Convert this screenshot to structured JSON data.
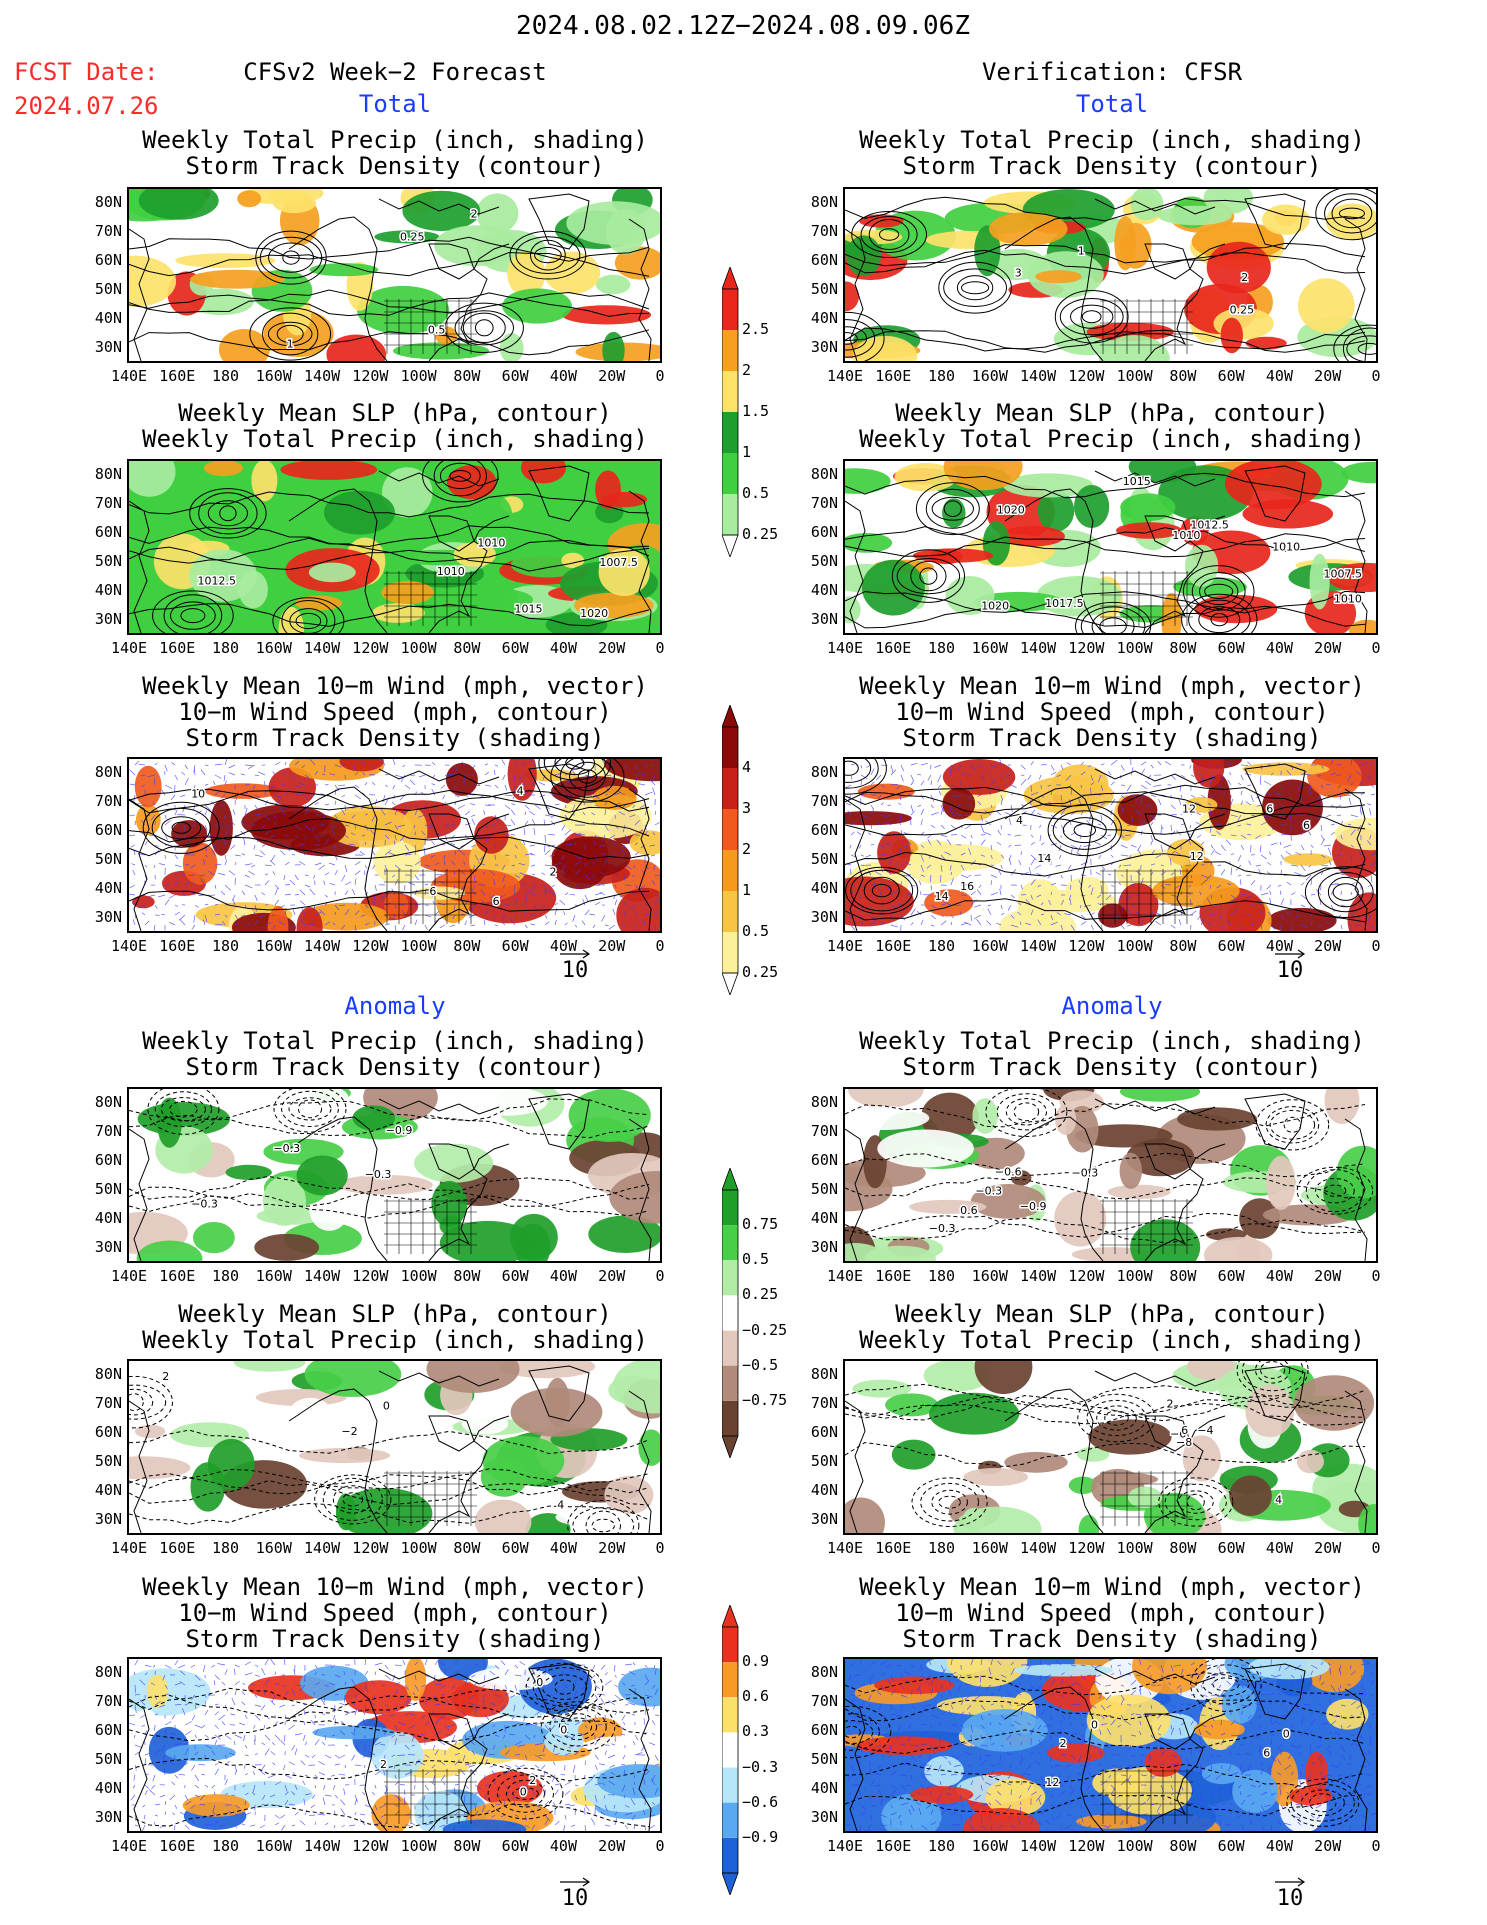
{
  "header": {
    "date_range": "2024.08.02.12Z−2024.08.09.06Z",
    "fcst_label": "FCST Date:",
    "fcst_date": "2024.07.26",
    "left_title": "CFSv2 Week−2 Forecast",
    "right_title": "Verification: CFSR",
    "section_total": "Total",
    "section_anomaly": "Anomaly"
  },
  "panel_titles": {
    "precip_storm": "Weekly Total Precip (inch, shading)\nStorm Track Density (contour)",
    "slp_precip": "Weekly Mean SLP (hPa, contour)\nWeekly Total Precip (inch, shading)",
    "wind_storm": "Weekly Mean 10−m Wind (mph, vector)\n10−m Wind Speed (mph, contour)\nStorm Track Density (shading)"
  },
  "axes": {
    "lat_labels": [
      "80N",
      "70N",
      "60N",
      "50N",
      "40N",
      "30N"
    ],
    "lon_labels": [
      "140E",
      "160E",
      "180",
      "160W",
      "140W",
      "120W",
      "100W",
      "80W",
      "60W",
      "40W",
      "20W",
      "0"
    ]
  },
  "vector_reference": "10",
  "colorbars": {
    "total_precip": {
      "labels": [
        "2.5",
        "2",
        "1.5",
        "1",
        "0.5",
        "0.25"
      ],
      "colors": [
        "#e8261b",
        "#f5a020",
        "#fde26a",
        "#1e9e2e",
        "#40cf40",
        "#a8eca0"
      ]
    },
    "total_storm": {
      "labels": [
        "4",
        "3",
        "2",
        "1",
        "0.5",
        "0.25"
      ],
      "colors": [
        "#8a0a0a",
        "#c8211b",
        "#f05a1e",
        "#f59a1e",
        "#f8c445",
        "#fdf09a"
      ]
    },
    "anom_precip": {
      "labels": [
        "0.75",
        "0.5",
        "0.25",
        "−0.25",
        "−0.5",
        "−0.75"
      ],
      "colors": [
        "#1f9e2a",
        "#48cf48",
        "#b2eda8",
        "#ffffff",
        "#e2c8bd",
        "#b08a7a",
        "#6a4232"
      ]
    },
    "anom_storm": {
      "labels": [
        "0.9",
        "0.6",
        "0.3",
        "−0.3",
        "−0.6",
        "−0.9"
      ],
      "colors": [
        "#e8321f",
        "#f79a28",
        "#fde06a",
        "#ffffff",
        "#b6e6f8",
        "#5aa8f0",
        "#1f62d8"
      ]
    }
  },
  "contour_labels": {
    "fc_total_precip": [
      "1",
      "0.5",
      "0.25",
      "2"
    ],
    "fc_total_slp": [
      "1010",
      "1007.5",
      "1012.5",
      "1020",
      "1015",
      "1010"
    ],
    "fc_total_wind": [
      "2",
      "6",
      "4",
      "10",
      "6"
    ],
    "vf_total_precip": [
      "1",
      "0.25",
      "3",
      "2"
    ],
    "vf_total_slp": [
      "1012.5",
      "1015",
      "1010",
      "1007.5",
      "1017.5",
      "1010",
      "1020",
      "1010",
      "1020"
    ],
    "vf_total_wind": [
      "6",
      "4",
      "12",
      "14",
      "16",
      "14",
      "12",
      "6"
    ],
    "fc_anom_precip": [
      "−0.3",
      "−0.9",
      "−0.3",
      "−0.3"
    ],
    "vf_anom_precip": [
      "−0.9",
      "−0.6",
      "−0.3",
      "−0.3",
      "−0.3",
      "0.6"
    ],
    "fc_anom_slp": [
      "−2",
      "4",
      "2",
      "0"
    ],
    "vf_anom_slp": [
      "−6",
      "2",
      "−4",
      "6",
      "−8",
      "4"
    ],
    "fc_anom_wind": [
      "2",
      "0",
      "2",
      "0",
      "0"
    ],
    "vf_anom_wind": [
      "0",
      "2",
      "12",
      "6",
      "0"
    ]
  }
}
